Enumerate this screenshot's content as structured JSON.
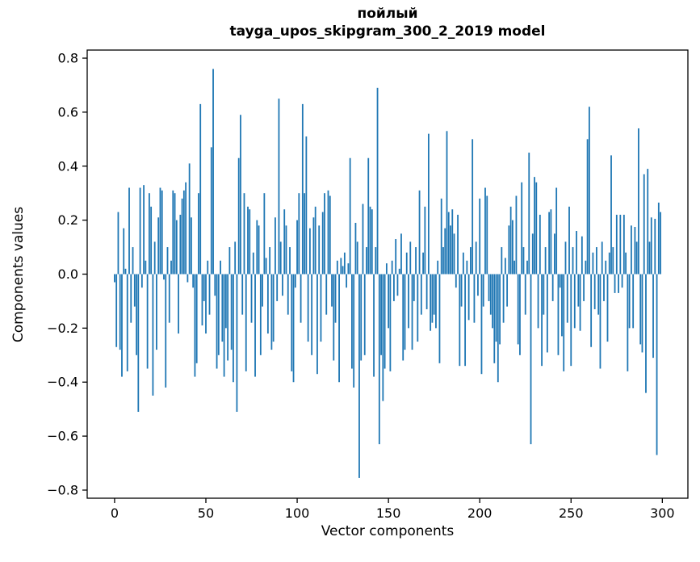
{
  "chart_data": {
    "type": "bar",
    "title_line1": "пойлый",
    "title_line2": "tayga_upos_skipgram_300_2_2019 model",
    "xlabel": "Vector components",
    "ylabel": "Components values",
    "bar_color": "#1f77b4",
    "axis_color": "#000000",
    "x_start": 0,
    "n_components": 300,
    "xlim": [
      -15,
      314
    ],
    "ylim": [
      -0.83,
      0.83
    ],
    "grid": "off",
    "legend": "none",
    "x_ticks": {
      "values": [
        0,
        50,
        100,
        150,
        200,
        250,
        300
      ],
      "labels": [
        "0",
        "50",
        "100",
        "150",
        "200",
        "250",
        "300"
      ]
    },
    "y_ticks": {
      "values": [
        -0.8,
        -0.6,
        -0.4,
        -0.2,
        0,
        0.2,
        0.4,
        0.6,
        0.8
      ],
      "labels": [
        "−0.8",
        "−0.6",
        "−0.4",
        "−0.2",
        "0.0",
        "0.2",
        "0.4",
        "0.6",
        "0.8"
      ]
    },
    "values": [
      -0.03,
      -0.27,
      0.23,
      -0.28,
      -0.38,
      0.17,
      0.02,
      -0.36,
      0.32,
      -0.18,
      0.1,
      -0.12,
      -0.3,
      -0.51,
      0.32,
      -0.05,
      0.33,
      0.05,
      -0.35,
      0.3,
      0.25,
      -0.45,
      0.12,
      -0.28,
      0.21,
      0.32,
      0.31,
      -0.02,
      -0.42,
      0.1,
      -0.18,
      0.05,
      0.31,
      0.3,
      0.2,
      -0.22,
      0.22,
      0.28,
      0.31,
      0.34,
      -0.03,
      0.41,
      0.21,
      -0.05,
      -0.38,
      -0.33,
      0.3,
      0.63,
      -0.19,
      -0.1,
      -0.22,
      0.05,
      -0.15,
      0.47,
      0.76,
      -0.08,
      -0.35,
      -0.3,
      0.05,
      -0.25,
      -0.38,
      -0.2,
      -0.32,
      0.1,
      -0.28,
      -0.4,
      0.12,
      -0.51,
      0.43,
      0.59,
      -0.15,
      0.3,
      -0.36,
      0.25,
      0.24,
      -0.18,
      0.08,
      -0.38,
      0.2,
      0.18,
      -0.3,
      -0.12,
      0.3,
      0.06,
      -0.22,
      0.1,
      -0.28,
      -0.25,
      0.21,
      -0.1,
      0.65,
      0.12,
      -0.08,
      0.24,
      0.18,
      -0.15,
      0.1,
      -0.36,
      -0.4,
      -0.05,
      0.2,
      0.3,
      -0.18,
      0.63,
      0.3,
      0.51,
      -0.25,
      0.17,
      -0.3,
      0.21,
      0.25,
      -0.37,
      0.18,
      -0.25,
      0.23,
      0.3,
      -0.15,
      0.31,
      0.29,
      -0.12,
      -0.32,
      -0.18,
      0.05,
      -0.4,
      0.06,
      0.03,
      0.08,
      -0.05,
      0.04,
      0.43,
      -0.35,
      -0.42,
      0.19,
      0.12,
      -0.755,
      -0.32,
      0.26,
      -0.3,
      0.1,
      0.43,
      0.25,
      0.24,
      -0.38,
      0.1,
      0.69,
      -0.63,
      -0.3,
      -0.47,
      -0.35,
      0.04,
      -0.2,
      -0.36,
      0.05,
      -0.1,
      0.13,
      -0.08,
      0.02,
      0.15,
      -0.32,
      -0.28,
      0.08,
      -0.2,
      0.12,
      -0.28,
      -0.1,
      0.1,
      -0.25,
      0.31,
      -0.15,
      0.08,
      0.25,
      -0.13,
      0.52,
      -0.21,
      -0.18,
      -0.15,
      -0.2,
      0.05,
      -0.33,
      0.28,
      0.1,
      0.17,
      0.53,
      0.23,
      0.18,
      0.24,
      0.15,
      -0.05,
      0.22,
      -0.34,
      -0.12,
      0.08,
      -0.34,
      0.05,
      -0.17,
      0.1,
      0.5,
      -0.18,
      0.12,
      -0.08,
      0.28,
      -0.37,
      -0.12,
      0.32,
      0.29,
      -0.1,
      -0.15,
      -0.2,
      -0.33,
      -0.25,
      -0.4,
      -0.26,
      0.1,
      -0.18,
      0.06,
      -0.12,
      0.18,
      0.25,
      0.2,
      0.05,
      0.29,
      -0.26,
      -0.3,
      0.34,
      0.1,
      -0.15,
      0.05,
      0.45,
      -0.63,
      0.15,
      0.36,
      0.34,
      -0.2,
      0.22,
      -0.34,
      -0.15,
      0.1,
      -0.29,
      0.23,
      0.24,
      -0.1,
      0.15,
      0.32,
      -0.3,
      -0.05,
      -0.23,
      -0.36,
      0.12,
      -0.18,
      0.25,
      -0.34,
      0.1,
      -0.2,
      0.16,
      -0.12,
      -0.21,
      0.14,
      -0.1,
      0.05,
      0.5,
      0.62,
      -0.27,
      0.08,
      -0.13,
      0.1,
      -0.15,
      -0.35,
      0.12,
      -0.1,
      0.05,
      -0.25,
      0.08,
      0.44,
      0.1,
      -0.07,
      0.22,
      -0.07,
      0.22,
      -0.05,
      0.22,
      0.08,
      -0.36,
      -0.2,
      0.18,
      -0.2,
      0.175,
      0.12,
      0.54,
      -0.26,
      -0.29,
      0.37,
      -0.44,
      0.39,
      0.12,
      0.21,
      -0.31,
      0.205,
      -0.67,
      0.265,
      0.23
    ]
  }
}
